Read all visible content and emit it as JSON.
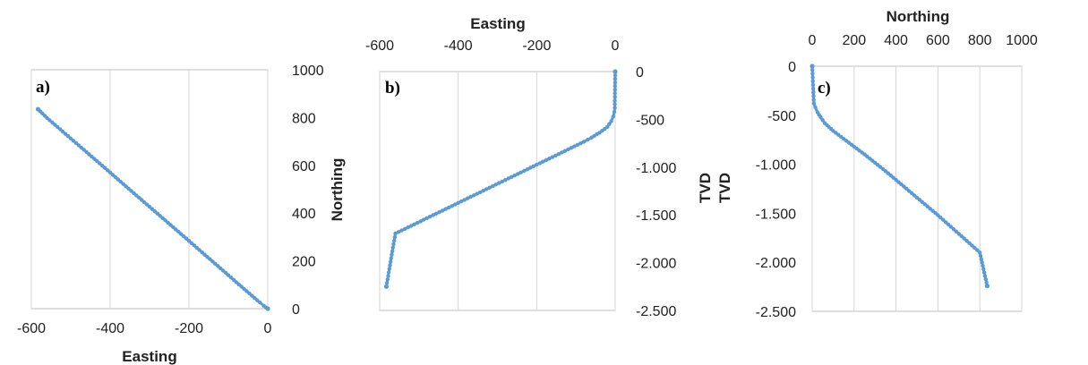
{
  "series_color": "#5b9bd5",
  "chart_data": [
    {
      "type": "line",
      "panel_label": "a)",
      "xlabel": "Easting",
      "ylabel": "Northing",
      "xlim": [
        -600,
        0
      ],
      "ylim": [
        0,
        1000
      ],
      "xticks": [
        -600,
        -400,
        -200,
        0
      ],
      "xtick_labels": [
        "-600",
        "-400",
        "-200",
        "0"
      ],
      "yticks": [
        0,
        200,
        400,
        600,
        800,
        1000
      ],
      "ytick_labels": [
        "0",
        "200",
        "400",
        "600",
        "800",
        "1000"
      ],
      "grid": "vertical",
      "series": [
        {
          "x": [
            0,
            -5,
            -10,
            -20,
            -40,
            -80,
            -120,
            -160,
            -200,
            -240,
            -280,
            -320,
            -360,
            -400,
            -440,
            -480,
            -520,
            -560,
            -583
          ],
          "y": [
            0,
            5,
            12,
            26,
            54,
            111,
            169,
            226,
            284,
            341,
            398,
            455,
            512,
            570,
            627,
            684,
            741,
            798,
            835
          ]
        }
      ]
    },
    {
      "type": "line",
      "panel_label": "b)",
      "xlabel": "Easting",
      "ylabel": "TVD",
      "xlim": [
        -600,
        0
      ],
      "ylim": [
        -2500,
        0
      ],
      "xticks": [
        -600,
        -400,
        -200,
        0
      ],
      "xtick_labels": [
        "-600",
        "-400",
        "-200",
        "0"
      ],
      "yticks": [
        0,
        -500,
        -1000,
        -1500,
        -2000,
        -2500
      ],
      "ytick_labels": [
        "0",
        "-500",
        "-1.000",
        "-1.500",
        "-2.000",
        "-2.500"
      ],
      "grid": "vertical",
      "series": [
        {
          "x": [
            0,
            -1,
            -2,
            -5,
            -10,
            -20,
            -40,
            -60,
            -80,
            -120,
            -160,
            -200,
            -240,
            -280,
            -320,
            -360,
            -400,
            -440,
            -480,
            -520,
            -560,
            -583
          ],
          "y": [
            0,
            -380,
            -420,
            -470,
            -520,
            -580,
            -640,
            -690,
            -735,
            -815,
            -895,
            -975,
            -1055,
            -1135,
            -1215,
            -1295,
            -1375,
            -1455,
            -1535,
            -1615,
            -1695,
            -2250
          ]
        }
      ]
    },
    {
      "type": "line",
      "panel_label": "c)",
      "xlabel": "Northing",
      "ylabel": "TVD",
      "xlim": [
        0,
        1000
      ],
      "ylim": [
        -2500,
        0
      ],
      "xticks": [
        0,
        200,
        400,
        600,
        800,
        1000
      ],
      "xtick_labels": [
        "0",
        "200",
        "400",
        "600",
        "800",
        "1000"
      ],
      "yticks": [
        0,
        -500,
        -1000,
        -1500,
        -2000,
        -2500
      ],
      "ytick_labels": [
        "0",
        "-500",
        "-1.000",
        "-1.500",
        "-2.000",
        "-2.500"
      ],
      "grid": "vertical",
      "series": [
        {
          "x": [
            0,
            8,
            15,
            25,
            40,
            60,
            80,
            100,
            150,
            200,
            250,
            300,
            350,
            400,
            450,
            500,
            550,
            600,
            650,
            700,
            750,
            800,
            835
          ],
          "y": [
            0,
            -380,
            -420,
            -470,
            -520,
            -580,
            -620,
            -660,
            -740,
            -820,
            -900,
            -985,
            -1070,
            -1160,
            -1250,
            -1340,
            -1430,
            -1520,
            -1615,
            -1710,
            -1805,
            -1900,
            -2240
          ]
        }
      ]
    }
  ]
}
